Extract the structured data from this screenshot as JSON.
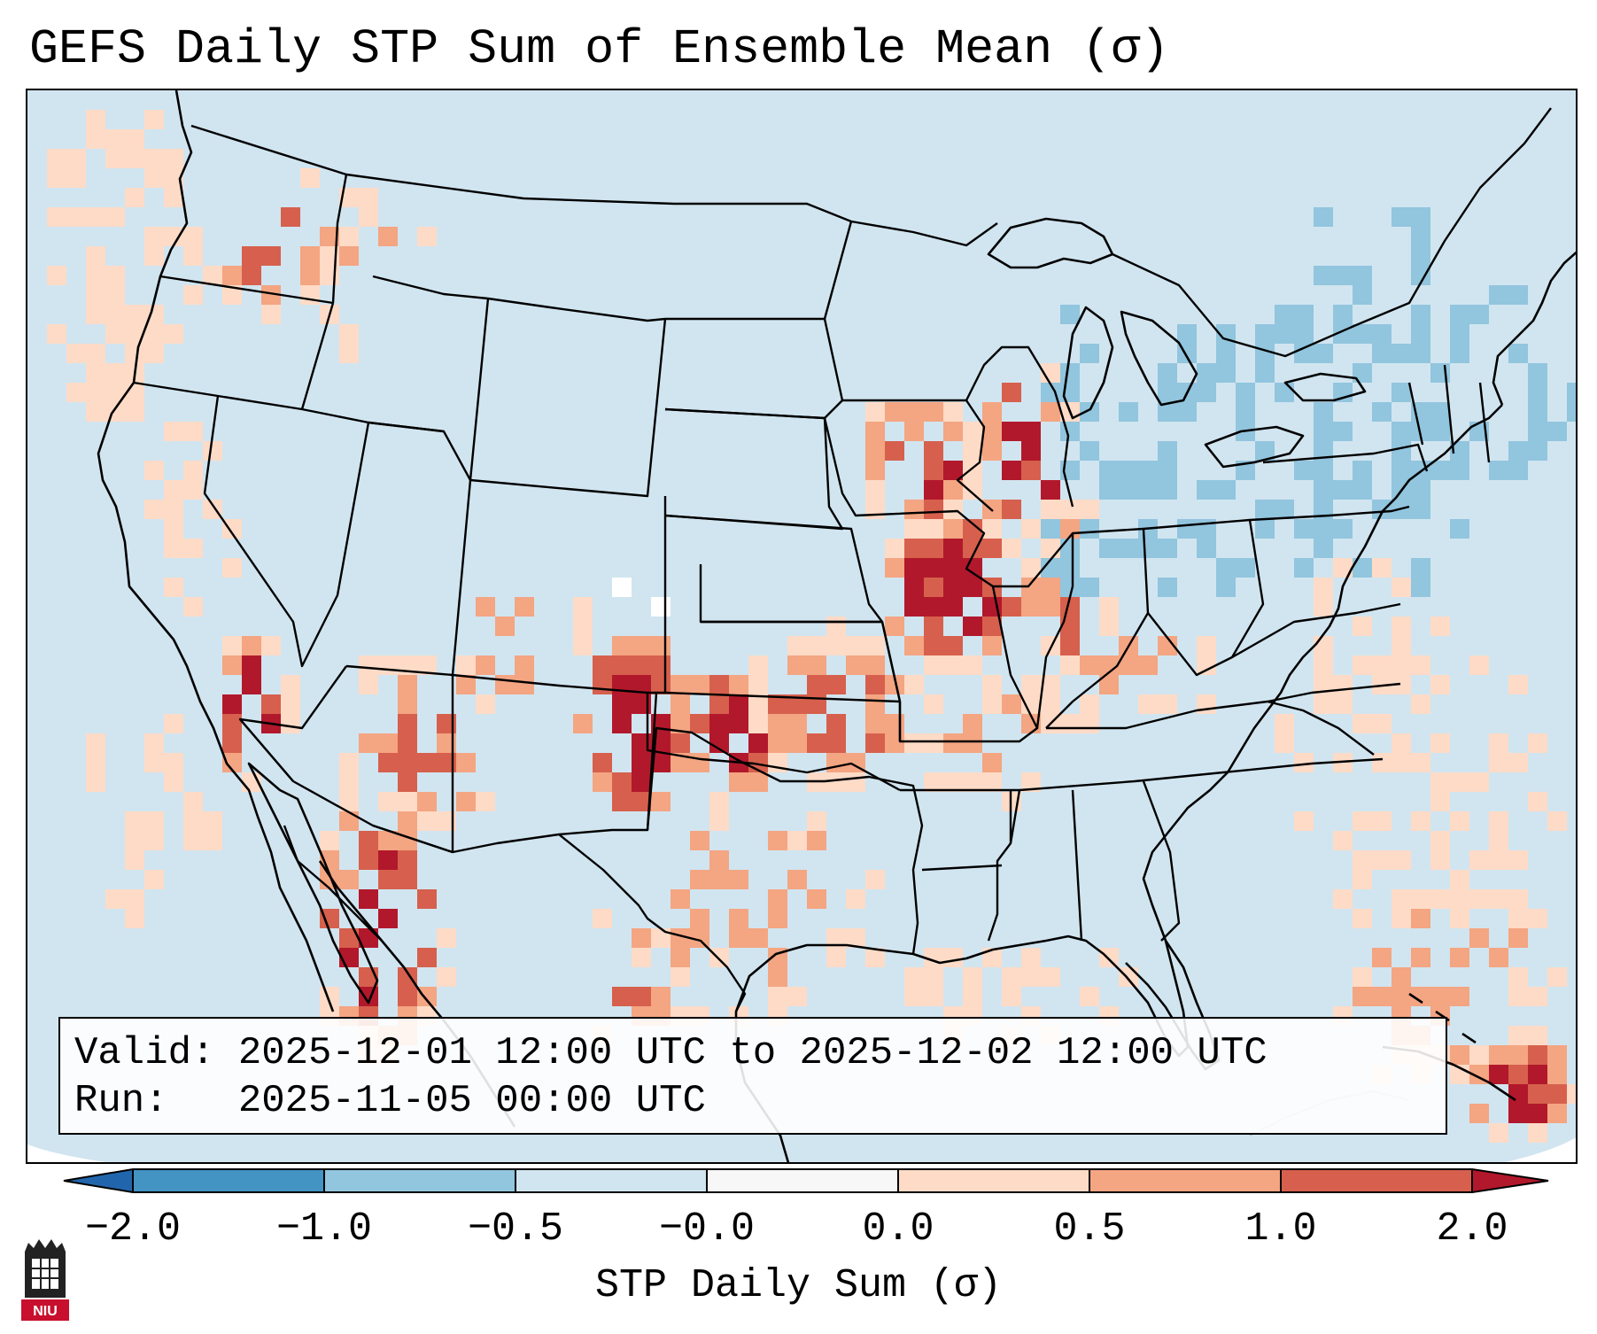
{
  "title": "GEFS Daily STP Sum of Ensemble Mean (σ)",
  "info": {
    "valid_label": "Valid:",
    "valid_value": "2025-12-01 12:00 UTC to 2025-12-02 12:00 UTC",
    "run_label": "Run:",
    "run_value": "2025-11-05 00:00 UTC"
  },
  "colorbar": {
    "label": "STP Daily Sum (σ)",
    "ticks": [
      "−2.0",
      "−1.0",
      "−0.5",
      "−0.0",
      "0.0",
      "0.5",
      "1.0",
      "2.0"
    ],
    "colors": [
      "#4393c3",
      "#92c5de",
      "#d1e5f0",
      "#f7f7f7",
      "#fddbc7",
      "#f4a582",
      "#d6604d",
      "#b2182b"
    ],
    "under_color": "#2166ac",
    "over_color": "#b2182b"
  },
  "map": {
    "background_color": "#d1e5f0",
    "highlights": [
      {
        "region": "Pacific Northwest",
        "level": "0.0 to 0.5"
      },
      {
        "region": "Upper Mississippi Valley / Iowa",
        "level": "1.0 to 2.0"
      },
      {
        "region": "Missouri",
        "level": "1.0 to 2.0"
      },
      {
        "region": "Eastern New Mexico",
        "level": "1.0 to 2.0"
      },
      {
        "region": "Oklahoma",
        "level": "1.0 to 2.0"
      },
      {
        "region": "Southern California / Nevada",
        "level": "1.0 to 2.0"
      },
      {
        "region": "Northwest Mexico",
        "level": "1.0 to 2.0"
      },
      {
        "region": "Great Lakes / Northeast",
        "level": "-1.0 to -0.5"
      }
    ]
  },
  "logo": {
    "text": "NIU",
    "primary_color": "#c8102e"
  }
}
